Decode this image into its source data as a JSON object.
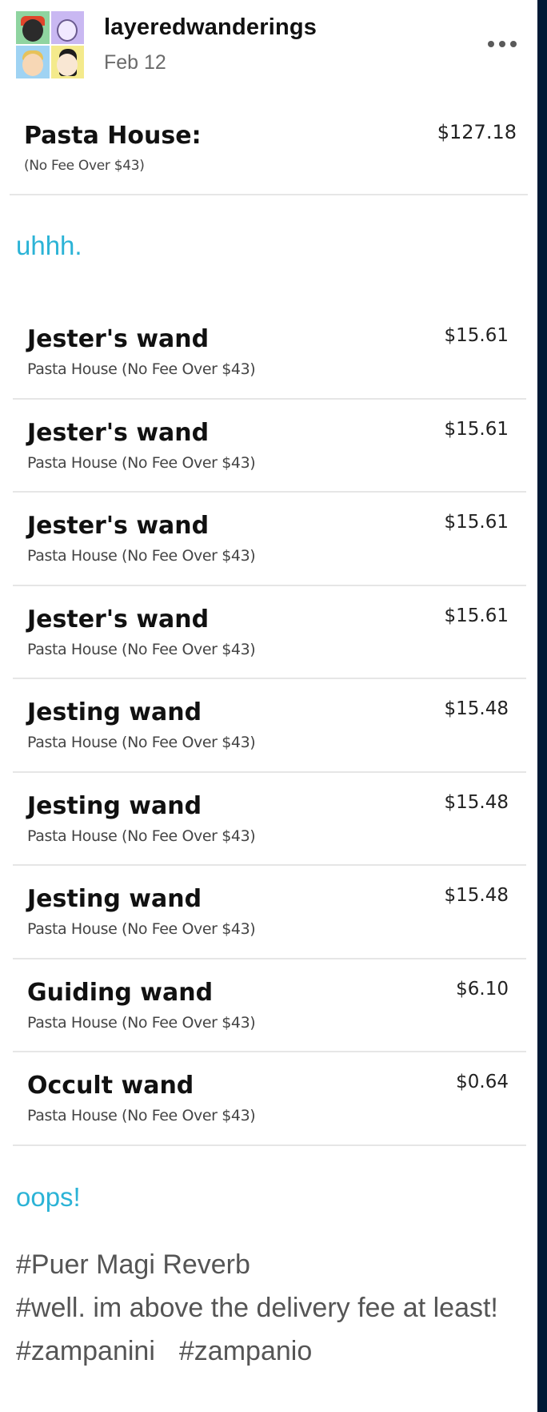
{
  "post": {
    "username": "layeredwanderings",
    "date": "Feb 12",
    "more_icon": "more-horizontal-icon"
  },
  "receipt": {
    "restaurant": "Pasta House:",
    "note": "(No Fee Over $43)",
    "total": "$127.18"
  },
  "captions": {
    "first": "uhhh.",
    "second": "oops!"
  },
  "items": [
    {
      "name": "Jester's wand",
      "store": "Pasta House (No Fee Over $43)",
      "price": "$15.61"
    },
    {
      "name": "Jester's wand",
      "store": "Pasta House (No Fee Over $43)",
      "price": "$15.61"
    },
    {
      "name": "Jester's wand",
      "store": "Pasta House (No Fee Over $43)",
      "price": "$15.61"
    },
    {
      "name": "Jester's wand",
      "store": "Pasta House (No Fee Over $43)",
      "price": "$15.61"
    },
    {
      "name": "Jesting wand",
      "store": "Pasta House (No Fee Over $43)",
      "price": "$15.48"
    },
    {
      "name": "Jesting wand",
      "store": "Pasta House (No Fee Over $43)",
      "price": "$15.48"
    },
    {
      "name": "Jesting wand",
      "store": "Pasta House (No Fee Over $43)",
      "price": "$15.48"
    },
    {
      "name": "Guiding wand",
      "store": "Pasta House (No Fee Over $43)",
      "price": "$6.10"
    },
    {
      "name": "Occult wand",
      "store": "Pasta House (No Fee Over $43)",
      "price": "$0.64"
    }
  ],
  "tags": [
    "#Puer Magi Reverb",
    "#well. im above the delivery fee at least!",
    "#zampanini",
    "#zampanio"
  ]
}
